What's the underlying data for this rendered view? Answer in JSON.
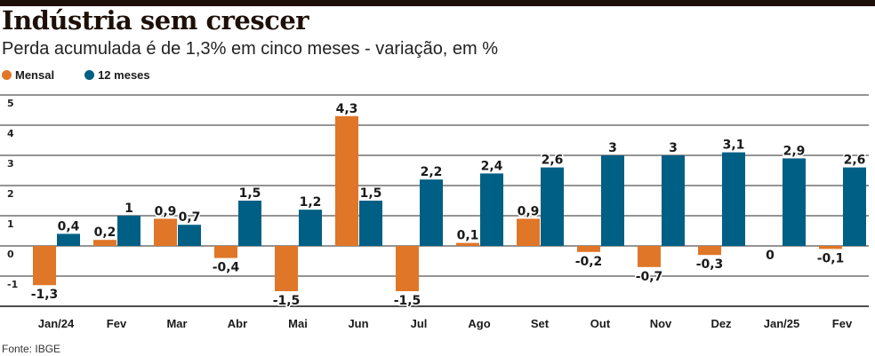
{
  "title": "Indústria sem crescer",
  "subtitle": "Perda acumulada é de 1,3% em cinco meses - variação, em %",
  "source": "Fonte: IBGE",
  "colors": {
    "mensal": "#e07628",
    "doze_meses": "#005f85",
    "topbar": "#1e1008"
  },
  "chart_data": {
    "type": "bar",
    "title": "Indústria sem crescer",
    "subtitle": "Perda acumulada é de 1,3% em cinco meses - variação, em %",
    "xlabel": "",
    "ylabel": "",
    "ylim": [
      -1.8,
      5
    ],
    "yticks": [
      5,
      4,
      3,
      2,
      1,
      0,
      -1
    ],
    "ytick_labels": [
      "5",
      "4",
      "3",
      "2",
      "1",
      "0",
      "-1"
    ],
    "grid": true,
    "legend": "top-left",
    "categories": [
      "Jan/24",
      "Fev",
      "Mar",
      "Abr",
      "Mai",
      "Jun",
      "Jul",
      "Ago",
      "Set",
      "Out",
      "Nov",
      "Dez",
      "Jan/25",
      "Fev"
    ],
    "series": [
      {
        "name": "Mensal",
        "color": "#e07628",
        "values": [
          -1.3,
          0.2,
          0.9,
          -0.4,
          -1.5,
          4.3,
          -1.5,
          0.1,
          0.9,
          -0.2,
          -0.7,
          -0.3,
          0,
          -0.1
        ],
        "labels": [
          "-1,3",
          "0,2",
          "0,9",
          "-0,4",
          "-1,5",
          "4,3",
          "-1,5",
          "0,1",
          "0,9",
          "-0,2",
          "-0,7",
          "-0,3",
          "0",
          "-0,1"
        ]
      },
      {
        "name": "12 meses",
        "color": "#005f85",
        "values": [
          0.4,
          1,
          0.7,
          1.5,
          1.2,
          1.5,
          2.2,
          2.4,
          2.6,
          3,
          3,
          3.1,
          2.9,
          2.6
        ],
        "labels": [
          "0,4",
          "1",
          "0,7",
          "1,5",
          "1,2",
          "1,5",
          "2,2",
          "2,4",
          "2,6",
          "3",
          "3",
          "3,1",
          "2,9",
          "2,6"
        ]
      }
    ]
  }
}
